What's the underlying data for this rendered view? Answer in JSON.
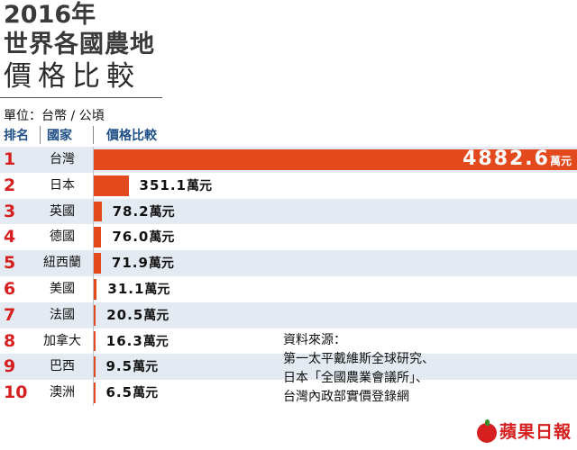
{
  "title": {
    "line1": "2016年",
    "line2": "世界各國農地",
    "line3": "價格比較"
  },
  "unit": "單位：台幣 / 公頃",
  "headers": {
    "rank": "排名",
    "country": "國家",
    "value": "價格比較"
  },
  "colors": {
    "bar": "#e2491c",
    "rank": "#d61f1f",
    "header": "#1f4f87",
    "row_shade": "#e4eaf1"
  },
  "chart_data": {
    "type": "bar",
    "orientation": "horizontal",
    "title": "2016年 世界各國農地 價格比較",
    "unit_label": "萬元",
    "ranks": [
      "1",
      "2",
      "3",
      "4",
      "5",
      "6",
      "7",
      "8",
      "9",
      "10"
    ],
    "categories": [
      "台灣",
      "日本",
      "英國",
      "德國",
      "紐西蘭",
      "美國",
      "法國",
      "加拿大",
      "巴西",
      "澳洲"
    ],
    "values": [
      4882.6,
      351.1,
      78.2,
      76.0,
      71.9,
      31.1,
      20.5,
      16.3,
      9.5,
      6.5
    ],
    "value_labels": [
      "4882.6",
      "351.1",
      "78.2",
      "76.0",
      "71.9",
      "31.1",
      "20.5",
      "16.3",
      "9.5",
      "6.5"
    ]
  },
  "source": {
    "heading": "資料來源：",
    "lines": [
      "第一太平戴維斯全球研究、",
      "日本「全國農業會議所」、",
      "台灣內政部實價登錄網"
    ]
  },
  "logo": {
    "text": "蘋果日報",
    "icon": "apple-icon"
  }
}
